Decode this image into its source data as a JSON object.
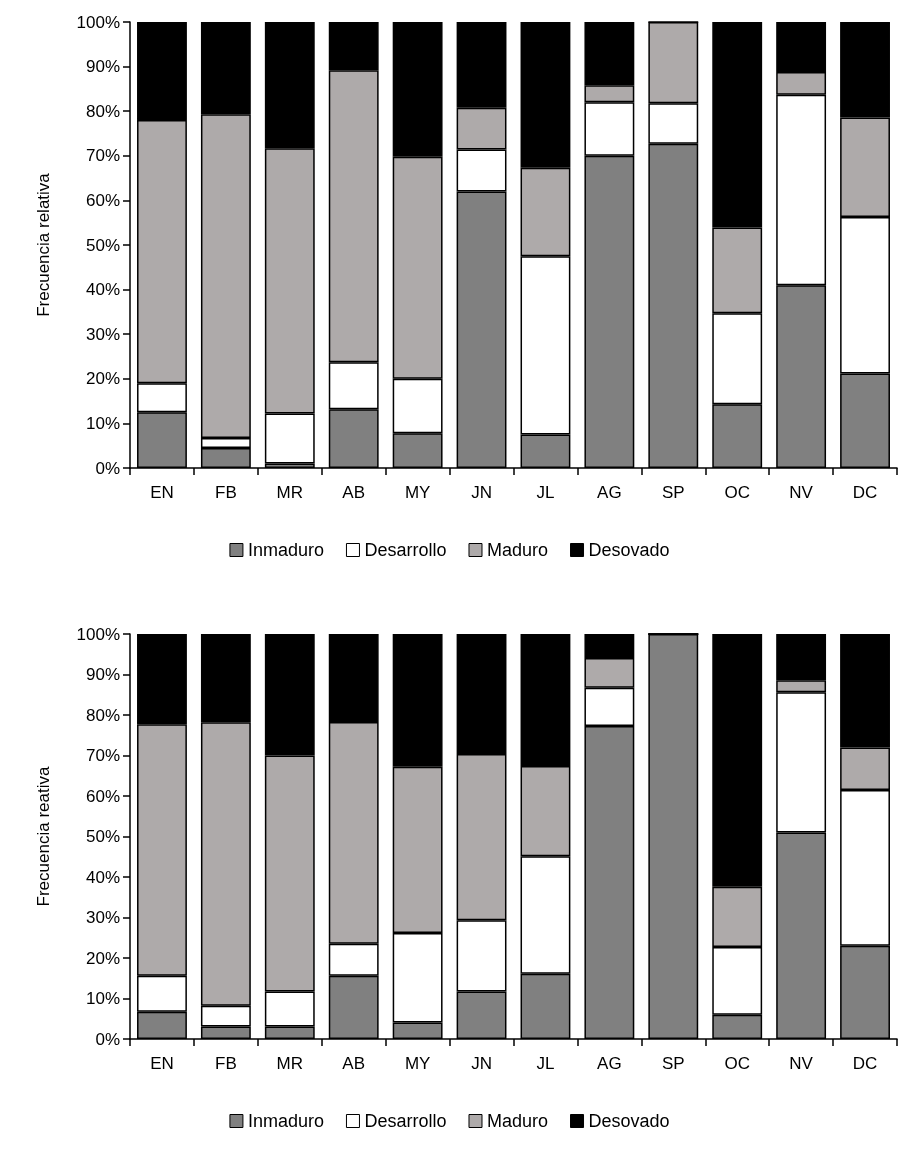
{
  "chart_data": [
    {
      "type": "bar",
      "stacked": true,
      "ylabel": "Frecuencia relativa",
      "categories": [
        "EN",
        "FB",
        "MR",
        "AB",
        "MY",
        "JN",
        "JL",
        "AG",
        "SP",
        "OC",
        "NV",
        "DC"
      ],
      "series": [
        {
          "name": "Inmaduro",
          "color": "#808080",
          "values": [
            12.5,
            4.5,
            1,
            13.2,
            7.8,
            62,
            7.5,
            70,
            72.7,
            14.3,
            41,
            21.2
          ]
        },
        {
          "name": "Desarrollo",
          "color": "#ffffff",
          "values": [
            6.5,
            2.2,
            11.2,
            10.5,
            12.2,
            9.4,
            40,
            12,
            9.1,
            20.4,
            42.7,
            35.1
          ]
        },
        {
          "name": "Maduro",
          "color": "#aeaaaa",
          "values": [
            59,
            72.6,
            59.5,
            65.5,
            49.8,
            9.4,
            19.8,
            3.8,
            18.2,
            19.2,
            5.1,
            22.3
          ]
        },
        {
          "name": "Desovado",
          "color": "#000000",
          "values": [
            22,
            20.7,
            28.3,
            10.8,
            30.2,
            19.2,
            32.7,
            14.2,
            0,
            46.1,
            11.2,
            21.4
          ]
        }
      ],
      "ylim": [
        0,
        100
      ],
      "yticks": [
        {
          "value": 0,
          "label": "0%"
        },
        {
          "value": 10,
          "label": "10%"
        },
        {
          "value": 20,
          "label": "20%"
        },
        {
          "value": 30,
          "label": "30%"
        },
        {
          "value": 40,
          "label": "40%"
        },
        {
          "value": 50,
          "label": "50%"
        },
        {
          "value": 60,
          "label": "60%"
        },
        {
          "value": 70,
          "label": "70%"
        },
        {
          "value": 80,
          "label": "80%"
        },
        {
          "value": 90,
          "label": "90%"
        },
        {
          "value": 100,
          "label": "100%"
        }
      ],
      "grid": false,
      "legend": "bottom"
    },
    {
      "type": "bar",
      "stacked": true,
      "ylabel": "Frecuencia reativa",
      "categories": [
        "EN",
        "FB",
        "MR",
        "AB",
        "MY",
        "JN",
        "JL",
        "AG",
        "SP",
        "OC",
        "NV",
        "DC"
      ],
      "series": [
        {
          "name": "Inmaduro",
          "color": "#808080",
          "values": [
            6.7,
            3.1,
            3.1,
            15.6,
            4.1,
            11.7,
            16.1,
            77.3,
            100,
            6,
            51,
            23
          ]
        },
        {
          "name": "Desarrollo",
          "color": "#ffffff",
          "values": [
            8.9,
            5.1,
            8.6,
            7.9,
            22.1,
            17.6,
            29,
            9.4,
            0,
            16.7,
            34.6,
            38.5
          ]
        },
        {
          "name": "Maduro",
          "color": "#aeaaaa",
          "values": [
            62.1,
            70,
            58.3,
            54.8,
            41,
            41.1,
            22.3,
            7.4,
            0,
            14.9,
            3,
            10.5
          ]
        },
        {
          "name": "Desovado",
          "color": "#000000",
          "values": [
            22.3,
            21.8,
            30,
            21.7,
            32.8,
            29.6,
            32.6,
            5.9,
            0,
            62.4,
            11.4,
            28
          ]
        }
      ],
      "ylim": [
        0,
        100
      ],
      "yticks": [
        {
          "value": 0,
          "label": "0%"
        },
        {
          "value": 10,
          "label": "10%"
        },
        {
          "value": 20,
          "label": "20%"
        },
        {
          "value": 30,
          "label": "30%"
        },
        {
          "value": 40,
          "label": "40%"
        },
        {
          "value": 50,
          "label": "50%"
        },
        {
          "value": 60,
          "label": "60%"
        },
        {
          "value": 70,
          "label": "70%"
        },
        {
          "value": 80,
          "label": "80%"
        },
        {
          "value": 90,
          "label": "90%"
        },
        {
          "value": 100,
          "label": "100%"
        }
      ],
      "grid": false,
      "legend": "bottom"
    }
  ]
}
